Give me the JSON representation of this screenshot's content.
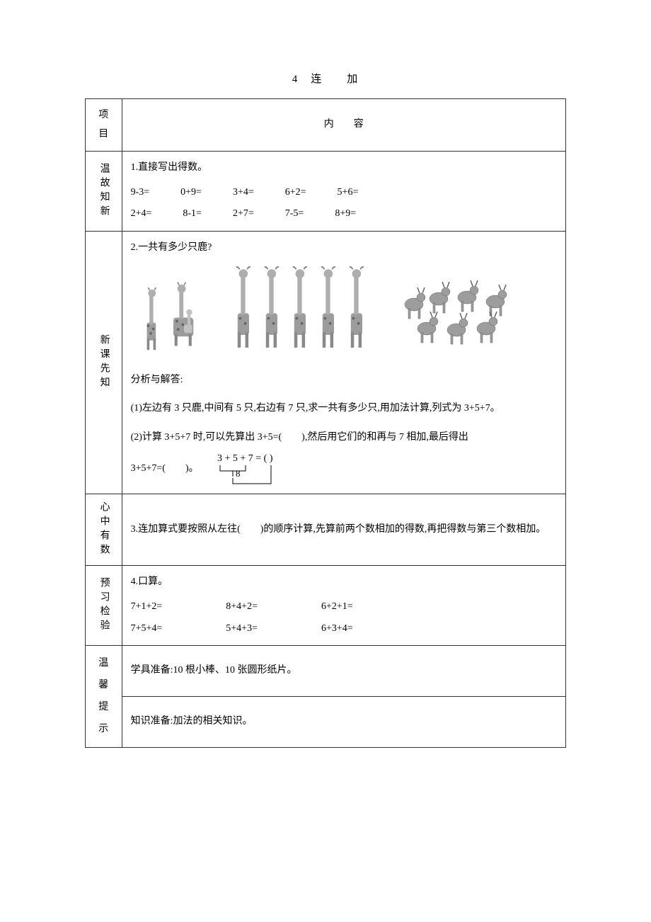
{
  "title": "4　连　　加",
  "table": {
    "header_left": "项目",
    "header_right": "内　　容",
    "rows": [
      {
        "label": "温故知新",
        "q1_intro": "1.直接写出得数。",
        "line1": [
          "9-3=",
          "0+9=",
          "3+4=",
          "6+2=",
          "5+6="
        ],
        "line2": [
          "2+4=",
          "8-1=",
          "2+7=",
          "7-5=",
          "8+9="
        ]
      },
      {
        "label": "新课先知",
        "q2_intro": "2.一共有多少只鹿?",
        "deer_groups": [
          3,
          5,
          7
        ],
        "analysis_title": "分析与解答:",
        "step1": "(1)左边有 3 只鹿,中间有 5 只,右边有 7 只,求一共有多少只,用加法计算,列式为 3+5+7。",
        "step2": "(2)计算 3+5+7 时,可以先算出 3+5=(　　),然后用它们的和再与 7 相加,最后得出",
        "result_prefix": "3+5+7=(　　)。",
        "bracket_expr_top": "3 + 5 + 7 = (  )",
        "bracket_expr_mid": "8"
      },
      {
        "label": "心中有数",
        "text": "3.连加算式要按照从左往(　　)的顺序计算,先算前两个数相加的得数,再把得数与第三个数相加。"
      },
      {
        "label": "预习检验",
        "intro": "4.口算。",
        "line1": [
          "7+1+2=",
          "8+4+2=",
          "6+2+1="
        ],
        "line2": [
          "7+5+4=",
          "5+4+3=",
          "6+3+4="
        ]
      },
      {
        "label": "温馨提示",
        "line1": "学具准备:10 根小棒、10 张圆形纸片。",
        "line2": "知识准备:加法的相关知识。"
      }
    ]
  }
}
